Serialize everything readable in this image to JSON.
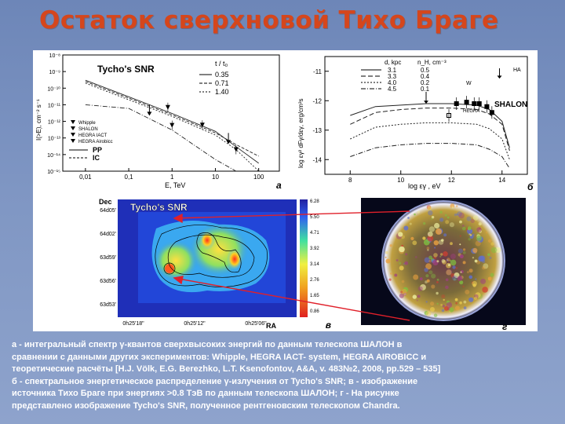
{
  "title": "Остаток сверхновой Тихо Браге",
  "panel_a": {
    "chart_title": "Tycho's SNR",
    "ylabel": "I(>E), cm⁻² s⁻¹",
    "xlabel": "E, TeV",
    "yticks": [
      "10⁻⁸",
      "10⁻⁹",
      "10⁻¹⁰",
      "10⁻¹¹",
      "10⁻¹²",
      "10⁻¹³",
      "10⁻¹⁴",
      "10⁻¹⁵"
    ],
    "xticks": [
      "0,01",
      "0,1",
      "1",
      "10",
      "100"
    ],
    "t_header": "t / t₀",
    "t_values": [
      "0.35",
      "0.71",
      "1.40"
    ],
    "legend": [
      "Whipple",
      "SHALON",
      "HEGRA IACT",
      "HEGRA Airobicc"
    ],
    "model_legend": [
      "PP",
      "IC"
    ],
    "panel_label": "а",
    "chart_data": {
      "type": "line",
      "xscale": "log",
      "yscale": "log",
      "xlim": [
        0.003,
        300
      ],
      "ylim": [
        1e-15,
        1e-08
      ],
      "series": [
        {
          "name": "PP (t/t0=0.35)",
          "x": [
            0.01,
            0.1,
            1,
            10,
            30,
            100
          ],
          "y": [
            3e-10,
            3e-11,
            3e-12,
            2.5e-13,
            3e-14,
            3e-15
          ]
        },
        {
          "name": "PP (t/t0=0.71)",
          "x": [
            0.01,
            0.1,
            1,
            10,
            30,
            100
          ],
          "y": [
            2.5e-10,
            2.5e-11,
            2.5e-12,
            2e-13,
            4e-14,
            8e-15
          ]
        },
        {
          "name": "PP (t/t0=1.40)",
          "x": [
            0.01,
            0.1,
            1,
            10,
            30,
            100
          ],
          "y": [
            2e-10,
            2e-11,
            2e-12,
            1.5e-13,
            2e-14,
            1e-15
          ]
        },
        {
          "name": "IC",
          "x": [
            0.01,
            0.1,
            1,
            10,
            30
          ],
          "y": [
            1e-11,
            6e-12,
            3e-13,
            5e-15,
            1e-15
          ]
        }
      ],
      "points": [
        {
          "name": "Whipple",
          "x": [
            0.3
          ],
          "y": [
            1e-11
          ],
          "kind": "upper-limit"
        },
        {
          "name": "SHALON",
          "x": [
            0.8,
            5,
            30
          ],
          "y": [
            7e-12,
            6e-13,
            2e-14
          ]
        },
        {
          "name": "HEGRA IACT",
          "x": [
            1
          ],
          "y": [
            5.8e-13
          ]
        },
        {
          "name": "HEGRA Airobicc",
          "x": [
            20
          ],
          "y": [
            2e-13
          ],
          "kind": "upper-limit"
        }
      ]
    }
  },
  "panel_b": {
    "ylabel": "log εγ² dFγ/dεγ, erg/cm²s",
    "xlabel": "log εγ , eV",
    "yticks": [
      "-11",
      "-12",
      "-13",
      "-14"
    ],
    "xticks": [
      "8",
      "10",
      "12",
      "14"
    ],
    "legend_headers": [
      "d, kpc",
      "n_H, cm⁻³"
    ],
    "legend_rows": [
      [
        "3.1",
        "0.5"
      ],
      [
        "3.3",
        "0.4"
      ],
      [
        "4.0",
        "0.2"
      ],
      [
        "4.5",
        "0.1"
      ]
    ],
    "labels": [
      "HA",
      "SHALON",
      "W",
      "HEGRA"
    ],
    "panel_label": "б",
    "chart_data": {
      "type": "line",
      "xlim": [
        7,
        15
      ],
      "ylim": [
        -14.5,
        -10.5
      ],
      "series": [
        {
          "name": "d=3.1, nH=0.5",
          "x": [
            8,
            9,
            10,
            11,
            12,
            13,
            13.5,
            14,
            14.3
          ],
          "y": [
            -12.5,
            -12.2,
            -12.15,
            -12.1,
            -12.1,
            -12.15,
            -12.3,
            -12.7,
            -13.6
          ]
        },
        {
          "name": "d=3.3, nH=0.4",
          "x": [
            8,
            9,
            10,
            11,
            12,
            13,
            13.5,
            14,
            14.3
          ],
          "y": [
            -12.8,
            -12.4,
            -12.3,
            -12.25,
            -12.25,
            -12.3,
            -12.45,
            -12.8,
            -13.7
          ]
        },
        {
          "name": "d=4.0, nH=0.2",
          "x": [
            8,
            9,
            10,
            11,
            12,
            13,
            13.5,
            14,
            14.3
          ],
          "y": [
            -13.3,
            -12.9,
            -12.8,
            -12.75,
            -12.75,
            -12.8,
            -12.95,
            -13.3,
            -14.0
          ]
        },
        {
          "name": "d=4.5, nH=0.1",
          "x": [
            8,
            9,
            10,
            11,
            12,
            13,
            13.5,
            14,
            14.3
          ],
          "y": [
            -13.9,
            -13.6,
            -13.5,
            -13.45,
            -13.45,
            -13.5,
            -13.65,
            -13.9,
            -14.3
          ]
        }
      ],
      "points": [
        {
          "name": "SHALON",
          "x": [
            12.2,
            12.6,
            12.9,
            13.1,
            13.4,
            13.6
          ],
          "y": [
            -12.1,
            -12.05,
            -12.1,
            -12.1,
            -12.2,
            -12.4
          ]
        },
        {
          "name": "HEGRA",
          "x": [
            11.9
          ],
          "y": [
            -12.5
          ]
        }
      ]
    }
  },
  "panel_c": {
    "title": "Tycho's SNR",
    "ylabel": "Dec",
    "dec_ticks": [
      "64d05'",
      "64d02'",
      "63d59'",
      "63d56'",
      "63d53'"
    ],
    "ra_ticks": [
      "0h25'18\"",
      "0h25'12\"",
      "0h25'06\""
    ],
    "ra_label": "RA",
    "colorbar_ticks": [
      "0.86",
      "1.65",
      "2.76",
      "3.14",
      "3.92",
      "4.71",
      "5.50",
      "6.28"
    ],
    "panel_label": "в"
  },
  "panel_d": {
    "panel_label": "г"
  },
  "caption": [
    "а - интегральный спектр γ-квантов сверхвысоких энергий по данным телескопа ШАЛОН в",
    "сравнении с данными других экспериментов: Whipple, HEGRA IACT- system, HEGRA AIROBICC  и",
    "теоретические расчёты [H.J. Völk, E.G. Berezhko, L.T. Ksenofontov, A&A, v. 483№2, 2008, pp.529 – 535]",
    "б - спектральное энергетическое распределение γ-излучения от Tycho's SNR; в - изображение",
    "источника Тихо Браге при энергиях >0.8 ТэВ по данным телескопа ШАЛОН; г - На рисунке",
    "представлено изображение Tycho's SNR, полученное рентгеновским  телескопом Chandra."
  ],
  "colors": {
    "title": "#d5461c",
    "background": "#7f96c3",
    "arrow": "#e0202a"
  }
}
